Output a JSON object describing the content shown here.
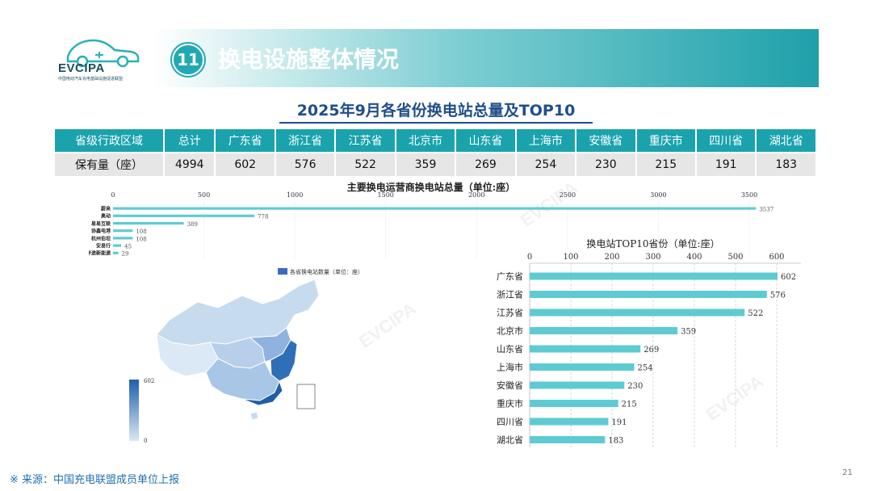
{
  "logo": {
    "brand": "EVCIPA",
    "sub": "中国电动汽车充电基础设施促进联盟"
  },
  "header": {
    "section_no": "11",
    "section_title": "换电设施整体情况"
  },
  "page_title": "2025年9月各省份换电站总量及TOP10",
  "summary_table": {
    "headers": [
      "省级行政区域",
      "总计",
      "广东省",
      "浙江省",
      "江苏省",
      "北京市",
      "山东省",
      "上海市",
      "安徽省",
      "重庆市",
      "四川省",
      "湖北省"
    ],
    "row": [
      "保有量（座）",
      "4994",
      "602",
      "576",
      "522",
      "359",
      "269",
      "254",
      "230",
      "215",
      "191",
      "183"
    ]
  },
  "footer": {
    "source": "※  来源：中国充电联盟成员单位上报",
    "page": "21"
  },
  "colors": {
    "accent": "#1aa3ad",
    "bar": "#5ecbd3",
    "title": "#1f4e8c",
    "map_dark": "#1e5fa8",
    "map_light": "#dbe8f5"
  },
  "chart_data": [
    {
      "type": "bar",
      "orientation": "horizontal",
      "title": "主要换电运营商换电站总量（单位:座）",
      "categories": [
        "蔚来",
        "奥动",
        "易易互联",
        "协鑫电港",
        "杭州伯坦",
        "安易行",
        "伴途新能源"
      ],
      "values": [
        3537,
        778,
        389,
        108,
        108,
        45,
        29
      ],
      "xlim": [
        0,
        3500
      ],
      "xticks": [
        0,
        500,
        1000,
        1500,
        2000,
        2500,
        3000,
        3500
      ]
    },
    {
      "type": "bar",
      "orientation": "horizontal",
      "title": "换电站TOP10省份（单位:座）",
      "categories": [
        "广东省",
        "浙江省",
        "江苏省",
        "北京市",
        "山东省",
        "上海市",
        "安徽省",
        "重庆市",
        "四川省",
        "湖北省"
      ],
      "values": [
        602,
        576,
        522,
        359,
        269,
        254,
        230,
        215,
        191,
        183
      ],
      "xlim": [
        0,
        600
      ],
      "xticks": [
        0,
        100,
        200,
        300,
        400,
        500,
        600
      ]
    },
    {
      "type": "heatmap",
      "title": "各省换电站数量（单位：座）",
      "legend": "各省换电站数量（单位：座）",
      "range": [
        0,
        602
      ],
      "range_labels": [
        "602",
        "0"
      ]
    }
  ]
}
